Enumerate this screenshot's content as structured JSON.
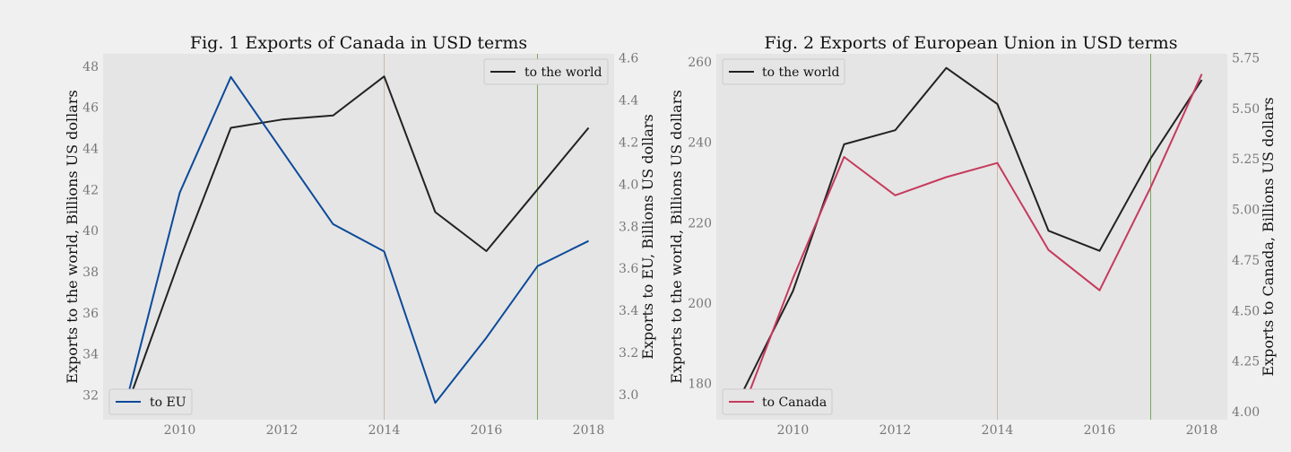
{
  "chart_data": [
    {
      "type": "line",
      "title": "Fig. 1 Exports of Canada in USD terms",
      "x": [
        2009,
        2010,
        2011,
        2012,
        2013,
        2014,
        2015,
        2016,
        2017,
        2018
      ],
      "xticks": [
        2010,
        2012,
        2014,
        2016,
        2018
      ],
      "xlim": [
        2008.5,
        2018.5
      ],
      "ylabel": "Exports to the world, Billions US dollars",
      "ylim": [
        30.8,
        48.6
      ],
      "yticks": [
        32,
        34,
        36,
        38,
        40,
        42,
        44,
        46,
        48
      ],
      "y2label": "Exports to EU, Billions US dollars",
      "y2lim": [
        2.88,
        4.62
      ],
      "y2ticks": [
        3.0,
        3.2,
        3.4,
        3.6,
        3.8,
        4.0,
        4.2,
        4.4,
        4.6
      ],
      "vlines": [
        {
          "x": 2014,
          "color": "#cdb9a6"
        },
        {
          "x": 2017,
          "color": "#7aa85a"
        }
      ],
      "grid": false,
      "series": [
        {
          "name": "to the world",
          "axis": "left",
          "color": "#222222",
          "legend": "top-right",
          "values": [
            31.7,
            38.6,
            45.0,
            45.4,
            45.6,
            47.5,
            40.9,
            39.0,
            42.0,
            45.0
          ]
        },
        {
          "name": "to EU",
          "axis": "right",
          "color": "#0d4a99",
          "legend": "bottom-left",
          "values": [
            3.01,
            3.96,
            4.51,
            4.16,
            3.81,
            3.68,
            2.96,
            3.27,
            3.61,
            3.73
          ]
        }
      ]
    },
    {
      "type": "line",
      "title": "Fig. 2 Exports of European Union in USD terms",
      "x": [
        2009,
        2010,
        2011,
        2012,
        2013,
        2014,
        2015,
        2016,
        2017,
        2018
      ],
      "xticks": [
        2010,
        2012,
        2014,
        2016,
        2018
      ],
      "xlim": [
        2008.5,
        2018.5
      ],
      "ylabel": "Exports to the world, Billions US dollars",
      "ylim": [
        171,
        262
      ],
      "yticks": [
        180,
        200,
        220,
        240,
        260
      ],
      "y2label": "Exports to Canada, Billions US dollars",
      "y2lim": [
        3.96,
        5.77
      ],
      "y2ticks": [
        4.0,
        4.25,
        4.5,
        4.75,
        5.0,
        5.25,
        5.5,
        5.75
      ],
      "y2ticklabels": [
        "4.00",
        "4.25",
        "4.50",
        "4.75",
        "5.00",
        "5.25",
        "5.50",
        "5.75"
      ],
      "vlines": [
        {
          "x": 2014,
          "color": "#cdb9a6"
        },
        {
          "x": 2017,
          "color": "#7aa85a"
        }
      ],
      "grid": false,
      "series": [
        {
          "name": "to the world",
          "axis": "left",
          "color": "#222222",
          "legend": "top-left",
          "values": [
            177.5,
            203.0,
            239.5,
            243.0,
            258.5,
            249.5,
            218.0,
            213.0,
            236.0,
            255.5
          ]
        },
        {
          "name": "to Canada",
          "axis": "right",
          "color": "#c63a5c",
          "legend": "bottom-left",
          "values": [
            4.0,
            4.66,
            5.26,
            5.07,
            5.16,
            5.23,
            4.8,
            4.6,
            5.11,
            5.67
          ]
        }
      ]
    }
  ]
}
